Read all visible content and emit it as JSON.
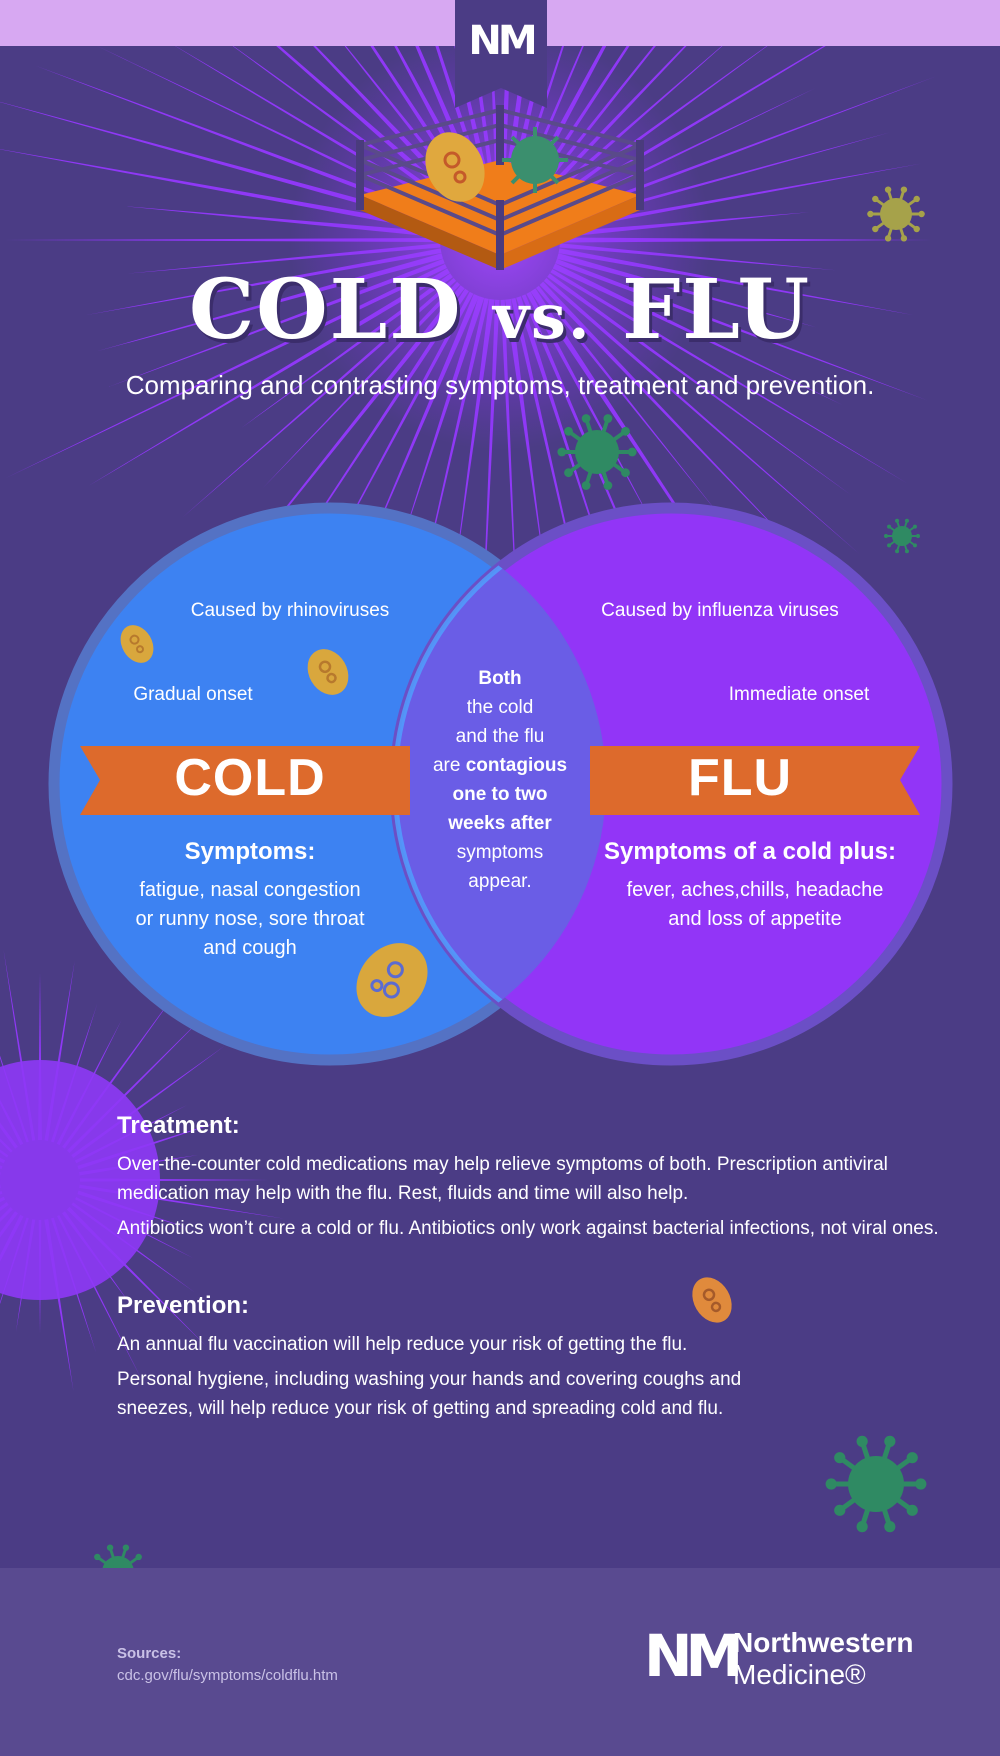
{
  "header": {
    "logo_text": "NM",
    "title_left": "COLD",
    "title_vs": "vs.",
    "title_right": "FLU",
    "subtitle": "Comparing and contrasting symptoms, treatment and prevention."
  },
  "venn": {
    "cold": {
      "cause": "Caused by rhinoviruses",
      "onset": "Gradual onset",
      "label": "COLD",
      "symptoms_heading": "Symptoms:",
      "symptoms_lines": [
        "fatigue, nasal congestion",
        "or runny nose, sore throat",
        "and cough"
      ]
    },
    "flu": {
      "cause": "Caused by influenza viruses",
      "onset": "Immediate onset",
      "label": "FLU",
      "symptoms_heading": "Symptoms of a cold plus:",
      "symptoms_lines": [
        "fever, aches,chills, headache",
        "and loss of appetite"
      ]
    },
    "both": {
      "line1": "Both",
      "line2": "the cold",
      "line3": "and the flu",
      "line4_pre": "are ",
      "line4_bold": "contagious",
      "line5": "one to two",
      "line6": "weeks after",
      "line7": "symptoms",
      "line8": "appear."
    }
  },
  "treatment": {
    "heading": "Treatment:",
    "paragraphs": [
      "Over-the-counter cold medications may help relieve symptoms of both. Prescription antiviral medication may help with the flu. Rest, fluids and time will also help.",
      "Antibiotics won’t cure a cold or flu. Antibiotics only work against bacterial infections, not viral ones."
    ]
  },
  "prevention": {
    "heading": "Prevention:",
    "paragraphs": [
      "An annual flu vaccination will help reduce your risk of getting the flu.",
      "Personal hygiene, including washing your hands and covering coughs and sneezes, will help reduce your risk of getting and spreading cold and flu."
    ]
  },
  "footer": {
    "sources_label": "Sources:",
    "sources_url": "cdc.gov/flu/symptoms/coldflu.htm",
    "brand_mark": "NM",
    "brand_name_1": "Northwestern",
    "brand_name_2": "Medicine®"
  },
  "colors": {
    "background": "#4b3c85",
    "burst": "#8b33f5",
    "cold_circle": "#3d82f2",
    "flu_circle": "#9235f7",
    "banner": "#dd6a2c",
    "top_bar": "#d7a8f2"
  }
}
